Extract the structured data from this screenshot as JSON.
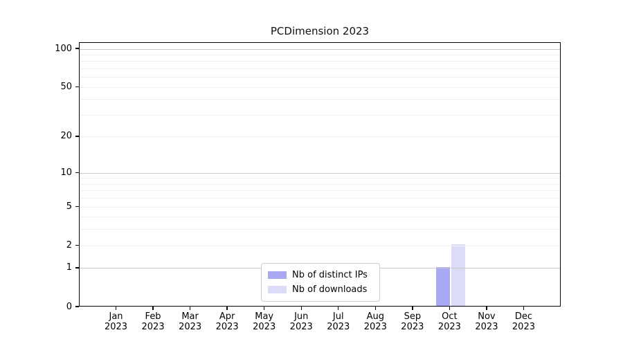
{
  "title": "PCDimension 2023",
  "chart_data": {
    "type": "bar",
    "title": "PCDimension 2023",
    "categories": [
      "Jan",
      "Feb",
      "Mar",
      "Apr",
      "May",
      "Jun",
      "Jul",
      "Aug",
      "Sep",
      "Oct",
      "Nov",
      "Dec"
    ],
    "category_year": "2023",
    "series": [
      {
        "name": "Nb of distinct IPs",
        "color": "#a9a9f3",
        "values": [
          0,
          0,
          0,
          0,
          0,
          0,
          0,
          0,
          0,
          1,
          0,
          0
        ]
      },
      {
        "name": "Nb of downloads",
        "color": "#dcdcf9",
        "values": [
          0,
          0,
          0,
          0,
          0,
          0,
          0,
          0,
          0,
          2,
          0,
          0
        ]
      }
    ],
    "xlabel": "",
    "ylabel": "",
    "yscale": "log1p",
    "ylim": [
      0,
      112
    ],
    "yticks": [
      0,
      1,
      2,
      5,
      10,
      20,
      50,
      100
    ],
    "gridlines": {
      "major": [
        1,
        10,
        100
      ],
      "minor": [
        2,
        3,
        4,
        5,
        6,
        7,
        8,
        9,
        20,
        30,
        40,
        50,
        60,
        70,
        80,
        90
      ],
      "major_color": "#c9c9c9",
      "minor_color": "#efefef"
    },
    "legend_position": "lower center",
    "axis_color": "#000000",
    "background_color": "#ffffff"
  },
  "legend": {
    "items": [
      {
        "label": "Nb of distinct IPs",
        "color": "#a9a9f3"
      },
      {
        "label": "Nb of downloads",
        "color": "#dcdcf9"
      }
    ]
  }
}
